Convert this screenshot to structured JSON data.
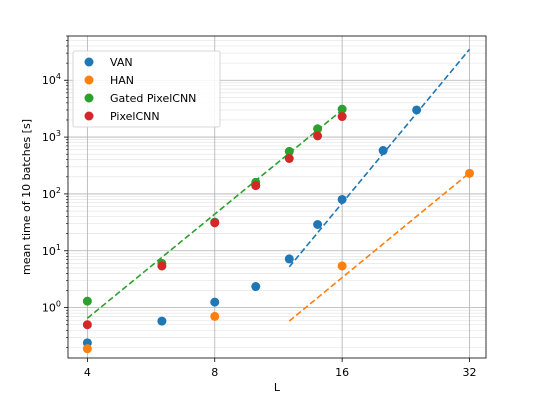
{
  "chart_data": {
    "type": "scatter",
    "xlabel": "L",
    "ylabel": "mean time of 10 batches [s]",
    "xscale": "log2",
    "yscale": "log10",
    "xlim": [
      3.6,
      35
    ],
    "ylim": [
      0.13,
      60000
    ],
    "grid": true,
    "legend_position": "top-left",
    "xticks": [
      {
        "value": 4,
        "label": "4"
      },
      {
        "value": 8,
        "label": "8"
      },
      {
        "value": 16,
        "label": "16"
      },
      {
        "value": 32,
        "label": "32"
      }
    ],
    "yticks": [
      {
        "value": 1,
        "label": "10",
        "exp": "0"
      },
      {
        "value": 10,
        "label": "10",
        "exp": "1"
      },
      {
        "value": 100,
        "label": "10",
        "exp": "2"
      },
      {
        "value": 1000,
        "label": "10",
        "exp": "3"
      },
      {
        "value": 10000,
        "label": "10",
        "exp": "4"
      }
    ],
    "series": [
      {
        "name": "VAN",
        "color": "#1f77b4",
        "points": [
          {
            "x": 4,
            "y": 0.24
          },
          {
            "x": 6,
            "y": 0.58
          },
          {
            "x": 8,
            "y": 1.25
          },
          {
            "x": 10,
            "y": 2.35
          },
          {
            "x": 12,
            "y": 7.2
          },
          {
            "x": 14,
            "y": 29
          },
          {
            "x": 16,
            "y": 80
          },
          {
            "x": 20,
            "y": 580
          },
          {
            "x": 24,
            "y": 3000
          }
        ],
        "fit": [
          {
            "x": 12,
            "y": 5.2
          },
          {
            "x": 32,
            "y": 35000
          }
        ]
      },
      {
        "name": "HAN",
        "color": "#ff7f0e",
        "points": [
          {
            "x": 4,
            "y": 0.19
          },
          {
            "x": 8,
            "y": 0.7
          },
          {
            "x": 16,
            "y": 5.4
          },
          {
            "x": 32,
            "y": 230
          }
        ],
        "fit": [
          {
            "x": 12,
            "y": 0.58
          },
          {
            "x": 32,
            "y": 235
          }
        ]
      },
      {
        "name": "Gated PixelCNN",
        "color": "#2ca02c",
        "points": [
          {
            "x": 4,
            "y": 1.3
          },
          {
            "x": 6,
            "y": 6.0
          },
          {
            "x": 8,
            "y": 32
          },
          {
            "x": 10,
            "y": 160
          },
          {
            "x": 12,
            "y": 560
          },
          {
            "x": 14,
            "y": 1400
          },
          {
            "x": 16,
            "y": 3100
          }
        ],
        "fit": [
          {
            "x": 4,
            "y": 0.65
          },
          {
            "x": 16,
            "y": 3000
          }
        ]
      },
      {
        "name": "PixelCNN",
        "color": "#d62728",
        "points": [
          {
            "x": 4,
            "y": 0.5
          },
          {
            "x": 6,
            "y": 5.4
          },
          {
            "x": 8,
            "y": 31
          },
          {
            "x": 10,
            "y": 140
          },
          {
            "x": 12,
            "y": 420
          },
          {
            "x": 14,
            "y": 1050
          },
          {
            "x": 16,
            "y": 2300
          }
        ],
        "fit": null
      }
    ]
  }
}
